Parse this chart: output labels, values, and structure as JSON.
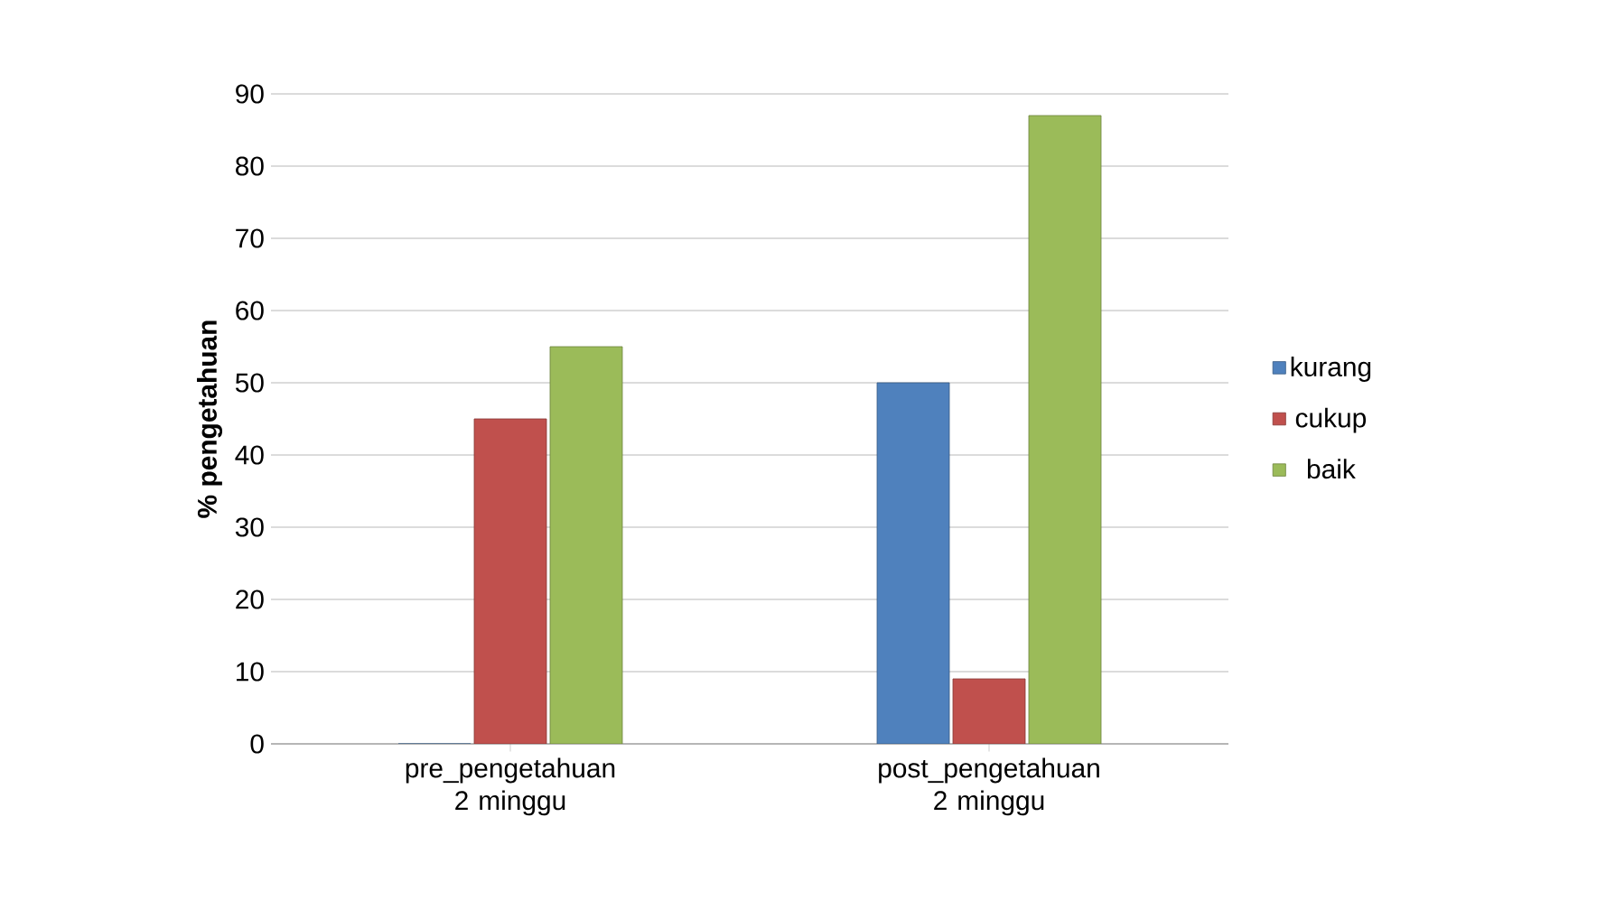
{
  "chart_data": {
    "type": "bar",
    "ylabel": "% pengetahuan",
    "categories": [
      "pre_pengetahuan 2 minggu",
      "post_pengetahuan 2 minggu"
    ],
    "series": [
      {
        "name": "kurang",
        "color": "#4f81bd",
        "values": [
          0,
          50
        ]
      },
      {
        "name": "cukup",
        "color": "#c0504d",
        "values": [
          45,
          9
        ]
      },
      {
        "name": "baik",
        "color": "#9bbb59",
        "values": [
          55,
          87
        ]
      }
    ],
    "ylim": [
      0,
      90
    ],
    "yticks": [
      0,
      10,
      20,
      30,
      40,
      50,
      60,
      70,
      80,
      90
    ],
    "grid": "y",
    "legend": "right"
  }
}
